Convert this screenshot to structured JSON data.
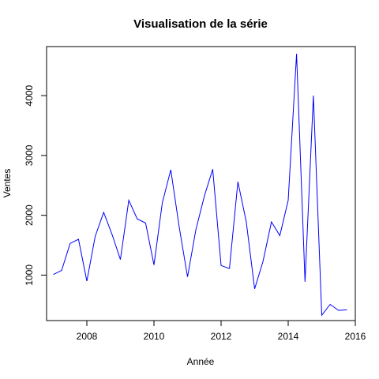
{
  "chart_data": {
    "type": "line",
    "title": "Visualisation de la série",
    "xlabel": "Année",
    "ylabel": "Ventes",
    "xlim": [
      2006.8,
      2016.0
    ],
    "ylim": [
      240,
      4820
    ],
    "x_ticks": [
      2008,
      2010,
      2012,
      2014,
      2016
    ],
    "y_ticks": [
      1000,
      2000,
      3000,
      4000
    ],
    "grid": false,
    "series": [
      {
        "color": "#0000ff",
        "x": [
          2007.0,
          2007.25,
          2007.5,
          2007.75,
          2008.0,
          2008.25,
          2008.5,
          2008.75,
          2009.0,
          2009.25,
          2009.5,
          2009.75,
          2010.0,
          2010.25,
          2010.5,
          2010.75,
          2011.0,
          2011.25,
          2011.5,
          2011.75,
          2012.0,
          2012.25,
          2012.5,
          2012.75,
          2013.0,
          2013.25,
          2013.5,
          2013.75,
          2014.0,
          2014.25,
          2014.5,
          2014.75,
          2015.0,
          2015.25,
          2015.5,
          2015.75
        ],
        "values": [
          1010,
          1080,
          1530,
          1600,
          900,
          1650,
          2050,
          1680,
          1260,
          2250,
          1940,
          1870,
          1170,
          2210,
          2760,
          1810,
          970,
          1760,
          2320,
          2770,
          1160,
          1110,
          2560,
          1890,
          770,
          1230,
          1890,
          1660,
          2250,
          4700,
          890,
          4000,
          330,
          510,
          410,
          420
        ]
      }
    ]
  }
}
